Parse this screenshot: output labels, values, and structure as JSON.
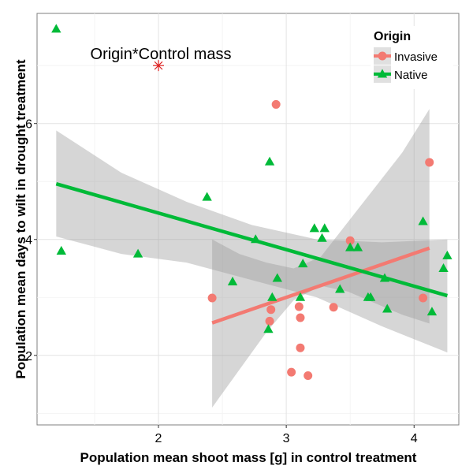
{
  "chart_data": {
    "type": "scatter",
    "xlabel": "Population mean shoot mass [g] in control treatment",
    "ylabel": "Population mean days to wilt in drought treatment",
    "xlim": [
      1.05,
      4.35
    ],
    "ylim": [
      0.8,
      7.9
    ],
    "x_ticks": [
      2,
      3,
      4
    ],
    "y_ticks": [
      2,
      4,
      6
    ],
    "grid": true,
    "annotation": {
      "text": "Origin*Control mass",
      "marker_x": 2.0,
      "marker_y": 7.0,
      "marker_color": "#dd2020"
    },
    "legend": {
      "title": "Origin",
      "placement": "top-right"
    },
    "series": [
      {
        "name": "Invasive",
        "color": "#f37a72",
        "marker": "circle",
        "points": [
          [
            2.42,
            2.99
          ],
          [
            2.88,
            2.79
          ],
          [
            2.87,
            2.59
          ],
          [
            2.92,
            6.33
          ],
          [
            3.1,
            2.84
          ],
          [
            3.11,
            2.65
          ],
          [
            3.11,
            2.13
          ],
          [
            3.04,
            1.71
          ],
          [
            3.17,
            1.65
          ],
          [
            3.37,
            2.83
          ],
          [
            3.5,
            3.98
          ],
          [
            4.07,
            2.99
          ],
          [
            4.12,
            5.33
          ]
        ],
        "fit": {
          "x": [
            2.42,
            4.12
          ],
          "y": [
            2.56,
            3.85
          ]
        },
        "ci_lower": [
          1.1,
          1.75,
          2.4,
          2.95,
          3.2,
          3.1,
          2.9,
          2.7,
          2.55
        ],
        "ci_upper": [
          4.0,
          3.75,
          3.6,
          3.5,
          3.7,
          4.3,
          4.9,
          5.5,
          6.25
        ]
      },
      {
        "name": "Native",
        "color": "#00ba38",
        "marker": "triangle",
        "points": [
          [
            1.2,
            7.63
          ],
          [
            1.24,
            3.8
          ],
          [
            1.84,
            3.75
          ],
          [
            2.38,
            4.73
          ],
          [
            2.58,
            3.27
          ],
          [
            2.76,
            4.0
          ],
          [
            2.86,
            2.45
          ],
          [
            2.87,
            5.34
          ],
          [
            2.89,
            3.0
          ],
          [
            2.93,
            3.33
          ],
          [
            3.11,
            3.0
          ],
          [
            3.13,
            3.58
          ],
          [
            3.22,
            4.19
          ],
          [
            3.28,
            4.02
          ],
          [
            3.3,
            4.19
          ],
          [
            3.42,
            3.14
          ],
          [
            3.5,
            3.86
          ],
          [
            3.56,
            3.86
          ],
          [
            3.64,
            3.0
          ],
          [
            3.66,
            3.0
          ],
          [
            3.77,
            3.33
          ],
          [
            3.79,
            2.8
          ],
          [
            4.07,
            4.31
          ],
          [
            4.14,
            2.75
          ],
          [
            4.23,
            3.5
          ],
          [
            4.26,
            3.72
          ]
        ],
        "fit": {
          "x": [
            1.2,
            4.26
          ],
          "y": [
            4.96,
            3.03
          ]
        },
        "ci_lower": [
          4.05,
          3.75,
          3.6,
          3.3,
          3.0,
          2.5,
          2.05
        ],
        "ci_upper": [
          5.88,
          5.15,
          4.65,
          4.25,
          4.0,
          3.95,
          4.0
        ]
      }
    ]
  }
}
